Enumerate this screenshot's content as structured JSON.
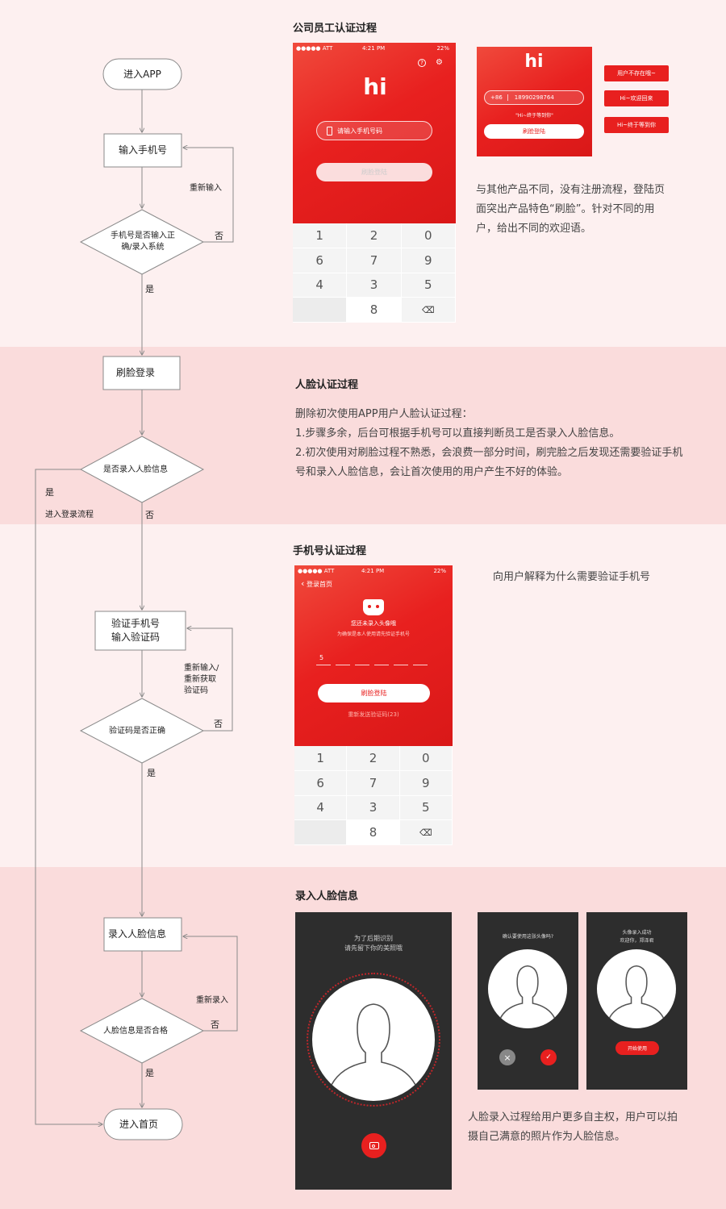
{
  "colors": {
    "brand_red": "#e8201f",
    "band_light": "#fdf0f0",
    "band_dark": "#fadcdc",
    "dark_screen": "#2d2d2d"
  },
  "flowchart": {
    "enter_app": "进入APP",
    "input_phone": "输入手机号",
    "reinput": "重新输入",
    "phone_check": "手机号是否输入正确/录入系统",
    "no": "否",
    "yes": "是",
    "face_login": "刷脸登录",
    "face_entered_check": "是否录入人脸信息",
    "enter_login_flow": "进入登录流程",
    "verify_phone_l1": "验证手机号",
    "verify_phone_l2": "输入验证码",
    "retry_code_l1": "重新输入/",
    "retry_code_l2": "重新获取",
    "retry_code_l3": "验证码",
    "code_check": "验证码是否正确",
    "enter_face": "录入人脸信息",
    "reenter": "重新录入",
    "face_ok_check": "人脸信息是否合格",
    "enter_home": "进入首页"
  },
  "section1": {
    "title": "公司员工认证过程",
    "status": {
      "carrier": "●●●●● ATT",
      "time": "4:21 PM",
      "battery": "22%"
    },
    "logo": "hi",
    "phone_placeholder": "请输入手机号码",
    "login_btn": "刷脸登陆",
    "keypad": [
      "1",
      "2",
      "0",
      "6",
      "7",
      "9",
      "4",
      "3",
      "5",
      "",
      "8",
      "⌫"
    ],
    "small_prefix": "+86",
    "small_number": "18990298764",
    "small_hint": "\"Hi~终于等到你\"",
    "small_btn": "刷脸登陆",
    "tags": [
      "用户不存在哦~",
      "Hi~欢迎回来",
      "Hi~终于等到你"
    ],
    "desc": [
      "与其他产品不同，没有注册流程，登陆页",
      "面突出产品特色“刷脸”。针对不同的用",
      "户，给出不同的欢迎语。"
    ]
  },
  "section2": {
    "title": "人脸认证过程",
    "desc": [
      "删除初次使用APP用户人脸认证过程：",
      "1.步骤多余，后台可根据手机号可以直接判断员工是否录入人脸信息。",
      "2.初次使用对刷脸过程不熟悉，会浪费一部分时间，刷完脸之后发现还需要验证手机",
      "号和录入人脸信息，会让首次使用的用户产生不好的体验。"
    ]
  },
  "section3": {
    "title": "手机号认证过程",
    "back": "登录首页",
    "msg1": "您还未录入头像哦",
    "msg2": "为确保是本人使用请先验证手机号",
    "code_digit": "5",
    "btn": "刷脸登陆",
    "resend": "重新发送验证码(23)",
    "desc": "向用户解释为什么需要验证手机号"
  },
  "section4": {
    "title": "录入人脸信息",
    "big_l1": "为了后期识别",
    "big_l2": "请先留下你的美照哦",
    "confirm_text": "确认要使用这张头像吗?",
    "success_l1": "头像录入成功",
    "success_l2": "欢迎你，郑泽君",
    "start_btn": "开始使用",
    "desc": [
      "人脸录入过程给用户更多自主权，用户可以拍",
      "摄自己满意的照片作为人脸信息。"
    ]
  }
}
